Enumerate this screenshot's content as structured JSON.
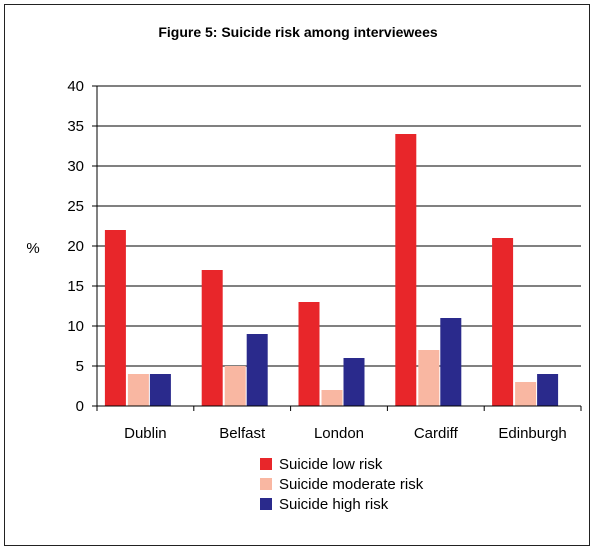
{
  "chart_data": {
    "type": "bar",
    "title": "Figure 5: Suicide risk among interviewees",
    "ylabel": "%",
    "xlabel": "",
    "ylim": [
      0,
      40
    ],
    "yticks": [
      0,
      5,
      10,
      15,
      20,
      25,
      30,
      35,
      40
    ],
    "grid": true,
    "legend_position": "bottom",
    "categories": [
      "Dublin",
      "Belfast",
      "London",
      "Cardiff",
      "Edinburgh"
    ],
    "series": [
      {
        "name": "Suicide low risk",
        "color": "#e8262a",
        "values": [
          22,
          17,
          13,
          34,
          21
        ]
      },
      {
        "name": "Suicide moderate risk",
        "color": "#f9b7a2",
        "values": [
          4,
          5,
          2,
          7,
          3
        ]
      },
      {
        "name": "Suicide high risk",
        "color": "#2a2a8c",
        "values": [
          4,
          9,
          6,
          11,
          4
        ]
      }
    ]
  }
}
